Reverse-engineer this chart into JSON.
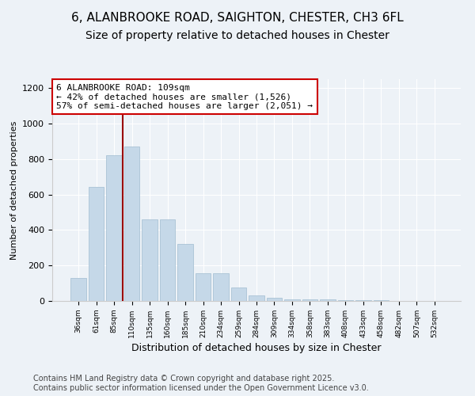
{
  "title": "6, ALANBROOKE ROAD, SAIGHTON, CHESTER, CH3 6FL",
  "subtitle": "Size of property relative to detached houses in Chester",
  "xlabel": "Distribution of detached houses by size in Chester",
  "ylabel": "Number of detached properties",
  "categories": [
    "36sqm",
    "61sqm",
    "85sqm",
    "110sqm",
    "135sqm",
    "160sqm",
    "185sqm",
    "210sqm",
    "234sqm",
    "259sqm",
    "284sqm",
    "309sqm",
    "334sqm",
    "358sqm",
    "383sqm",
    "408sqm",
    "433sqm",
    "458sqm",
    "482sqm",
    "507sqm",
    "532sqm"
  ],
  "values": [
    130,
    645,
    820,
    870,
    460,
    460,
    320,
    155,
    155,
    75,
    30,
    20,
    10,
    10,
    8,
    5,
    5,
    3,
    2,
    2,
    1
  ],
  "bar_color": "#c5d8e8",
  "bar_edge_color": "#a0bcd0",
  "annotation_line_color": "#990000",
  "annotation_box_text": "6 ALANBROOKE ROAD: 109sqm\n← 42% of detached houses are smaller (1,526)\n57% of semi-detached houses are larger (2,051) →",
  "annotation_box_edge_color": "#cc0000",
  "ylim": [
    0,
    1250
  ],
  "yticks": [
    0,
    200,
    400,
    600,
    800,
    1000,
    1200
  ],
  "background_color": "#edf2f7",
  "plot_bg_color": "#edf2f7",
  "footer_text": "Contains HM Land Registry data © Crown copyright and database right 2025.\nContains public sector information licensed under the Open Government Licence v3.0.",
  "title_fontsize": 11,
  "subtitle_fontsize": 10,
  "xlabel_fontsize": 9,
  "ylabel_fontsize": 8,
  "annotation_fontsize": 8,
  "footer_fontsize": 7
}
